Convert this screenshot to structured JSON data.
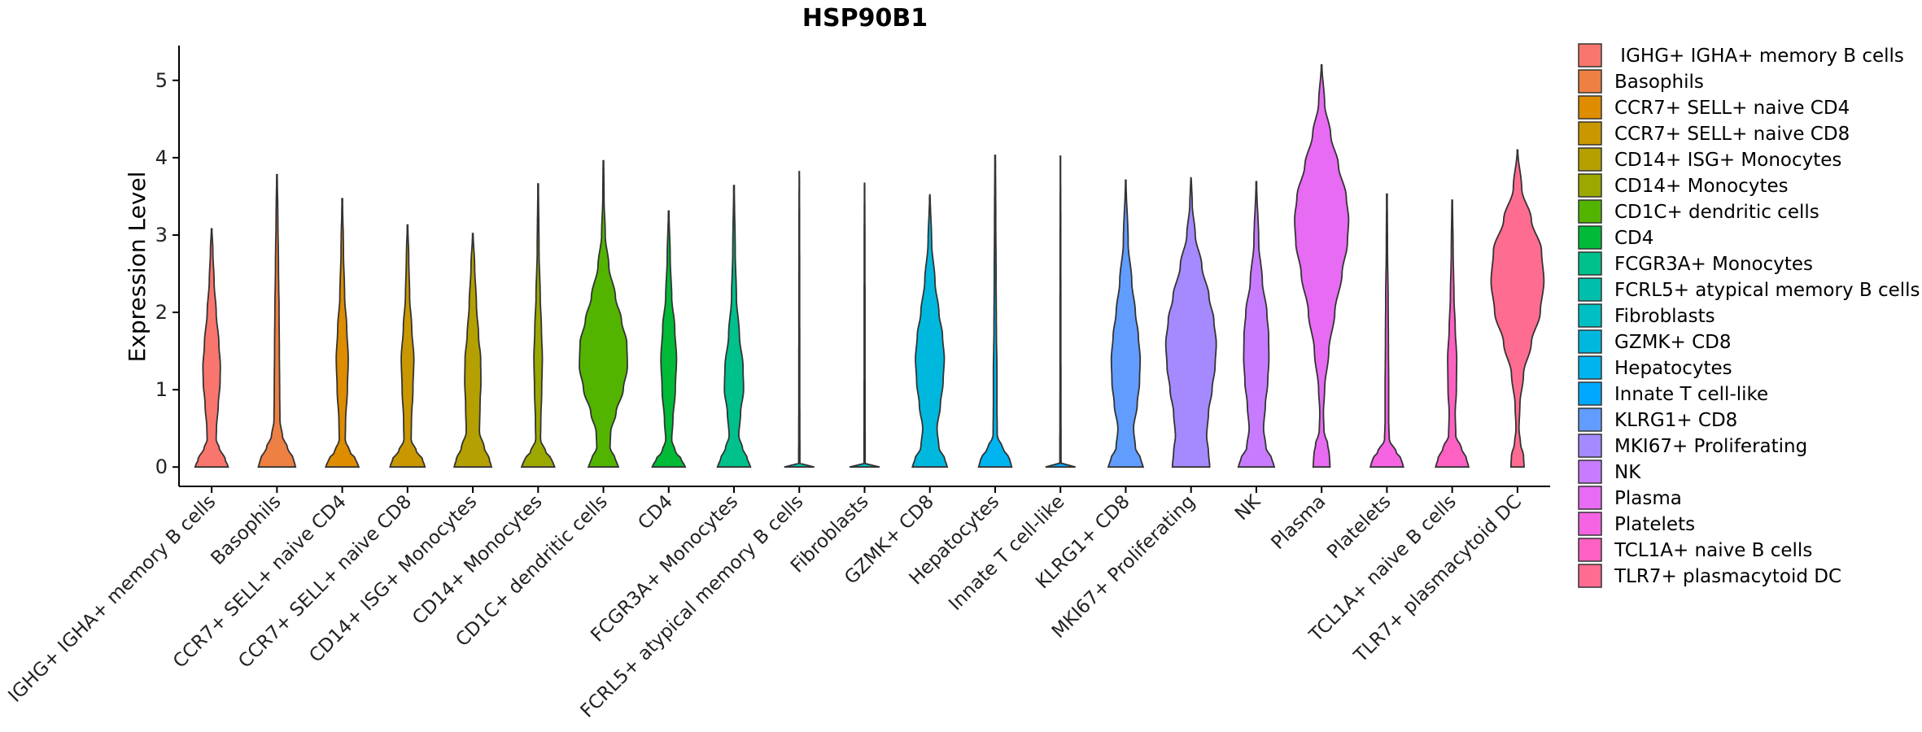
{
  "chart_data": {
    "type": "violin",
    "title": "HSP90B1",
    "xlabel": "",
    "ylabel": "Expression Level",
    "ylim": [
      -0.25,
      5.45
    ],
    "yticks": [
      0,
      1,
      2,
      3,
      4,
      5
    ],
    "categories": [
      "IGHG+ IGHA+ memory B cells",
      "Basophils",
      "CCR7+ SELL+ naive CD4",
      "CCR7+ SELL+ naive CD8",
      "CD14+ ISG+ Monocytes",
      "CD14+ Monocytes",
      "CD1C+ dendritic cells",
      "CD4",
      "FCGR3A+ Monocytes",
      "FCRL5+ atypical memory B cells",
      "Fibroblasts",
      "GZMK+ CD8",
      "Hepatocytes",
      "Innate T cell-like",
      "KLRG1+ CD8",
      "MKI67+ Proliferating",
      "NK",
      "Plasma",
      "Platelets",
      "TCL1A+ naive B cells",
      "TLR7+ plasmacytoid DC"
    ],
    "legend_labels": [
      " IGHG+ IGHA+ memory B cells",
      "Basophils",
      "CCR7+ SELL+ naive CD4",
      "CCR7+ SELL+ naive CD8",
      "CD14+ ISG+ Monocytes",
      "CD14+ Monocytes",
      "CD1C+ dendritic cells",
      "CD4",
      "FCGR3A+ Monocytes",
      "FCRL5+ atypical memory B cells",
      "Fibroblasts",
      "GZMK+ CD8",
      "Hepatocytes",
      "Innate T cell-like",
      "KLRG1+ CD8",
      "MKI67+ Proliferating",
      "NK",
      "Plasma",
      "Platelets",
      "TCL1A+ naive B cells",
      "TLR7+ plasmacytoid DC"
    ],
    "colors": [
      "#F8766D",
      "#EE8043",
      "#DE8C00",
      "#C99800",
      "#B4A000",
      "#9AA800",
      "#53B400",
      "#00BA38",
      "#00C08B",
      "#00BFAA",
      "#00BFC4",
      "#00B8DE",
      "#00B4F0",
      "#00A9FF",
      "#619CFF",
      "#A58AFF",
      "#C77CFF",
      "#E76BF3",
      "#F564E3",
      "#FF61C3",
      "#FF6C91"
    ],
    "max_values": [
      3.08,
      3.78,
      3.47,
      3.13,
      3.02,
      3.66,
      3.96,
      3.31,
      3.64,
      3.82,
      3.67,
      3.52,
      4.03,
      4.02,
      3.71,
      3.74,
      3.69,
      5.2,
      3.53,
      3.45,
      4.1
    ],
    "density_profiles": [
      [
        [
          0,
          0.55
        ],
        [
          0.1,
          0.45
        ],
        [
          0.25,
          0.25
        ],
        [
          0.35,
          0.15
        ],
        [
          0.5,
          0.16
        ],
        [
          0.8,
          0.22
        ],
        [
          1.1,
          0.28
        ],
        [
          1.3,
          0.29
        ],
        [
          1.6,
          0.24
        ],
        [
          2.0,
          0.15
        ],
        [
          2.4,
          0.08
        ],
        [
          2.8,
          0.04
        ],
        [
          3.08,
          0.01
        ]
      ],
      [
        [
          0,
          0.62
        ],
        [
          0.1,
          0.55
        ],
        [
          0.25,
          0.35
        ],
        [
          0.4,
          0.18
        ],
        [
          0.6,
          0.1
        ],
        [
          1.0,
          0.09
        ],
        [
          1.5,
          0.08
        ],
        [
          2.0,
          0.07
        ],
        [
          2.6,
          0.05
        ],
        [
          3.2,
          0.03
        ],
        [
          3.78,
          0.01
        ]
      ],
      [
        [
          0,
          0.55
        ],
        [
          0.1,
          0.45
        ],
        [
          0.2,
          0.25
        ],
        [
          0.35,
          0.1
        ],
        [
          0.6,
          0.11
        ],
        [
          1.0,
          0.17
        ],
        [
          1.4,
          0.2
        ],
        [
          1.8,
          0.15
        ],
        [
          2.2,
          0.08
        ],
        [
          2.8,
          0.04
        ],
        [
          3.47,
          0.01
        ]
      ],
      [
        [
          0,
          0.58
        ],
        [
          0.1,
          0.5
        ],
        [
          0.2,
          0.3
        ],
        [
          0.35,
          0.12
        ],
        [
          0.6,
          0.13
        ],
        [
          1.0,
          0.18
        ],
        [
          1.4,
          0.21
        ],
        [
          1.8,
          0.14
        ],
        [
          2.2,
          0.07
        ],
        [
          2.7,
          0.04
        ],
        [
          3.13,
          0.01
        ]
      ],
      [
        [
          0,
          0.62
        ],
        [
          0.1,
          0.55
        ],
        [
          0.25,
          0.38
        ],
        [
          0.45,
          0.22
        ],
        [
          0.8,
          0.24
        ],
        [
          1.1,
          0.27
        ],
        [
          1.4,
          0.26
        ],
        [
          1.7,
          0.19
        ],
        [
          2.1,
          0.12
        ],
        [
          2.6,
          0.06
        ],
        [
          3.02,
          0.01
        ]
      ],
      [
        [
          0,
          0.55
        ],
        [
          0.1,
          0.45
        ],
        [
          0.2,
          0.25
        ],
        [
          0.35,
          0.08
        ],
        [
          0.6,
          0.09
        ],
        [
          1.0,
          0.12
        ],
        [
          1.4,
          0.14
        ],
        [
          1.8,
          0.11
        ],
        [
          2.2,
          0.07
        ],
        [
          2.8,
          0.03
        ],
        [
          3.66,
          0.01
        ]
      ],
      [
        [
          0,
          0.5
        ],
        [
          0.1,
          0.4
        ],
        [
          0.25,
          0.22
        ],
        [
          0.45,
          0.24
        ],
        [
          0.7,
          0.42
        ],
        [
          1.0,
          0.66
        ],
        [
          1.3,
          0.8
        ],
        [
          1.6,
          0.78
        ],
        [
          1.9,
          0.6
        ],
        [
          2.2,
          0.4
        ],
        [
          2.6,
          0.18
        ],
        [
          3.0,
          0.06
        ],
        [
          3.5,
          0.02
        ],
        [
          3.96,
          0.01
        ]
      ],
      [
        [
          0,
          0.55
        ],
        [
          0.1,
          0.42
        ],
        [
          0.2,
          0.22
        ],
        [
          0.35,
          0.1
        ],
        [
          0.6,
          0.14
        ],
        [
          1.0,
          0.22
        ],
        [
          1.4,
          0.26
        ],
        [
          1.8,
          0.2
        ],
        [
          2.2,
          0.1
        ],
        [
          2.7,
          0.05
        ],
        [
          3.31,
          0.01
        ]
      ],
      [
        [
          0,
          0.55
        ],
        [
          0.1,
          0.45
        ],
        [
          0.25,
          0.28
        ],
        [
          0.4,
          0.16
        ],
        [
          0.7,
          0.22
        ],
        [
          1.0,
          0.32
        ],
        [
          1.3,
          0.3
        ],
        [
          1.7,
          0.18
        ],
        [
          2.2,
          0.08
        ],
        [
          2.8,
          0.04
        ],
        [
          3.64,
          0.01
        ]
      ],
      [
        [
          0,
          0.5
        ],
        [
          0.01,
          0.4
        ],
        [
          0.03,
          0.02
        ],
        [
          1.0,
          0.015
        ],
        [
          2.0,
          0.013
        ],
        [
          3.0,
          0.01
        ],
        [
          3.82,
          0.005
        ]
      ],
      [
        [
          0,
          0.5
        ],
        [
          0.01,
          0.4
        ],
        [
          0.03,
          0.02
        ],
        [
          1.0,
          0.015
        ],
        [
          2.0,
          0.013
        ],
        [
          3.0,
          0.01
        ],
        [
          3.67,
          0.005
        ]
      ],
      [
        [
          0,
          0.58
        ],
        [
          0.1,
          0.5
        ],
        [
          0.25,
          0.3
        ],
        [
          0.5,
          0.24
        ],
        [
          0.8,
          0.35
        ],
        [
          1.1,
          0.44
        ],
        [
          1.4,
          0.48
        ],
        [
          1.7,
          0.42
        ],
        [
          2.0,
          0.3
        ],
        [
          2.4,
          0.17
        ],
        [
          2.9,
          0.06
        ],
        [
          3.52,
          0.01
        ]
      ],
      [
        [
          0,
          0.55
        ],
        [
          0.1,
          0.48
        ],
        [
          0.25,
          0.25
        ],
        [
          0.4,
          0.07
        ],
        [
          0.8,
          0.06
        ],
        [
          1.2,
          0.06
        ],
        [
          1.8,
          0.04
        ],
        [
          2.5,
          0.03
        ],
        [
          3.2,
          0.02
        ],
        [
          4.03,
          0.01
        ]
      ],
      [
        [
          0,
          0.5
        ],
        [
          0.01,
          0.4
        ],
        [
          0.03,
          0.02
        ],
        [
          1.0,
          0.015
        ],
        [
          2.0,
          0.013
        ],
        [
          3.0,
          0.01
        ],
        [
          4.02,
          0.005
        ]
      ],
      [
        [
          0,
          0.58
        ],
        [
          0.1,
          0.5
        ],
        [
          0.25,
          0.32
        ],
        [
          0.5,
          0.26
        ],
        [
          0.8,
          0.38
        ],
        [
          1.1,
          0.46
        ],
        [
          1.4,
          0.48
        ],
        [
          1.7,
          0.42
        ],
        [
          2.0,
          0.32
        ],
        [
          2.4,
          0.2
        ],
        [
          2.9,
          0.08
        ],
        [
          3.71,
          0.01
        ]
      ],
      [
        [
          0,
          0.62
        ],
        [
          0.2,
          0.58
        ],
        [
          0.4,
          0.52
        ],
        [
          0.7,
          0.58
        ],
        [
          1.0,
          0.7
        ],
        [
          1.3,
          0.8
        ],
        [
          1.6,
          0.84
        ],
        [
          1.9,
          0.76
        ],
        [
          2.2,
          0.6
        ],
        [
          2.6,
          0.36
        ],
        [
          3.0,
          0.14
        ],
        [
          3.4,
          0.04
        ],
        [
          3.74,
          0.01
        ]
      ],
      [
        [
          0,
          0.6
        ],
        [
          0.1,
          0.52
        ],
        [
          0.25,
          0.32
        ],
        [
          0.5,
          0.24
        ],
        [
          0.8,
          0.3
        ],
        [
          1.1,
          0.38
        ],
        [
          1.4,
          0.42
        ],
        [
          1.7,
          0.41
        ],
        [
          2.0,
          0.35
        ],
        [
          2.4,
          0.2
        ],
        [
          2.9,
          0.08
        ],
        [
          3.69,
          0.01
        ]
      ],
      [
        [
          0,
          0.28
        ],
        [
          0.15,
          0.26
        ],
        [
          0.3,
          0.2
        ],
        [
          0.45,
          0.08
        ],
        [
          0.7,
          0.06
        ],
        [
          1.0,
          0.1
        ],
        [
          1.5,
          0.24
        ],
        [
          2.0,
          0.44
        ],
        [
          2.5,
          0.68
        ],
        [
          2.9,
          0.86
        ],
        [
          3.2,
          0.9
        ],
        [
          3.5,
          0.82
        ],
        [
          3.9,
          0.56
        ],
        [
          4.3,
          0.3
        ],
        [
          4.7,
          0.1
        ],
        [
          5.2,
          0.01
        ]
      ],
      [
        [
          0,
          0.55
        ],
        [
          0.1,
          0.48
        ],
        [
          0.2,
          0.3
        ],
        [
          0.35,
          0.08
        ],
        [
          0.6,
          0.06
        ],
        [
          1.0,
          0.06
        ],
        [
          1.6,
          0.05
        ],
        [
          2.2,
          0.04
        ],
        [
          2.8,
          0.02
        ],
        [
          3.53,
          0.01
        ]
      ],
      [
        [
          0,
          0.55
        ],
        [
          0.1,
          0.48
        ],
        [
          0.25,
          0.3
        ],
        [
          0.4,
          0.12
        ],
        [
          0.7,
          0.1
        ],
        [
          1.0,
          0.14
        ],
        [
          1.4,
          0.15
        ],
        [
          1.8,
          0.1
        ],
        [
          2.2,
          0.06
        ],
        [
          2.8,
          0.03
        ],
        [
          3.45,
          0.01
        ]
      ],
      [
        [
          0,
          0.22
        ],
        [
          0.15,
          0.2
        ],
        [
          0.3,
          0.1
        ],
        [
          0.5,
          0.05
        ],
        [
          0.8,
          0.08
        ],
        [
          1.2,
          0.2
        ],
        [
          1.6,
          0.46
        ],
        [
          2.0,
          0.76
        ],
        [
          2.4,
          0.88
        ],
        [
          2.8,
          0.8
        ],
        [
          3.2,
          0.46
        ],
        [
          3.6,
          0.14
        ],
        [
          4.1,
          0.01
        ]
      ]
    ]
  }
}
